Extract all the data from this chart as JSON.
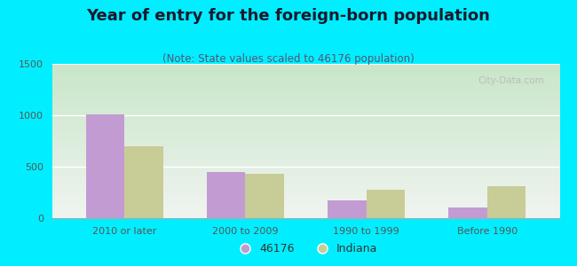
{
  "title": "Year of entry for the foreign-born population",
  "subtitle": "(Note: State values scaled to 46176 population)",
  "categories": [
    "2010 or later",
    "2000 to 2009",
    "1990 to 1999",
    "Before 1990"
  ],
  "series_46176": [
    1005,
    445,
    175,
    105
  ],
  "series_indiana": [
    700,
    435,
    275,
    310
  ],
  "color_46176": "#c39bd3",
  "color_indiana": "#c8cc96",
  "legend_label_46176": "46176",
  "legend_label_indiana": "Indiana",
  "ylim": [
    0,
    1500
  ],
  "yticks": [
    0,
    500,
    1000,
    1500
  ],
  "background_outer": "#00eeff",
  "bg_plot_top": "#c8e6c9",
  "bg_plot_bottom": "#f0f4f0",
  "title_fontsize": 13,
  "subtitle_fontsize": 8.5,
  "tick_fontsize": 8,
  "legend_fontsize": 9,
  "bar_width": 0.32,
  "watermark": "City-Data.com"
}
